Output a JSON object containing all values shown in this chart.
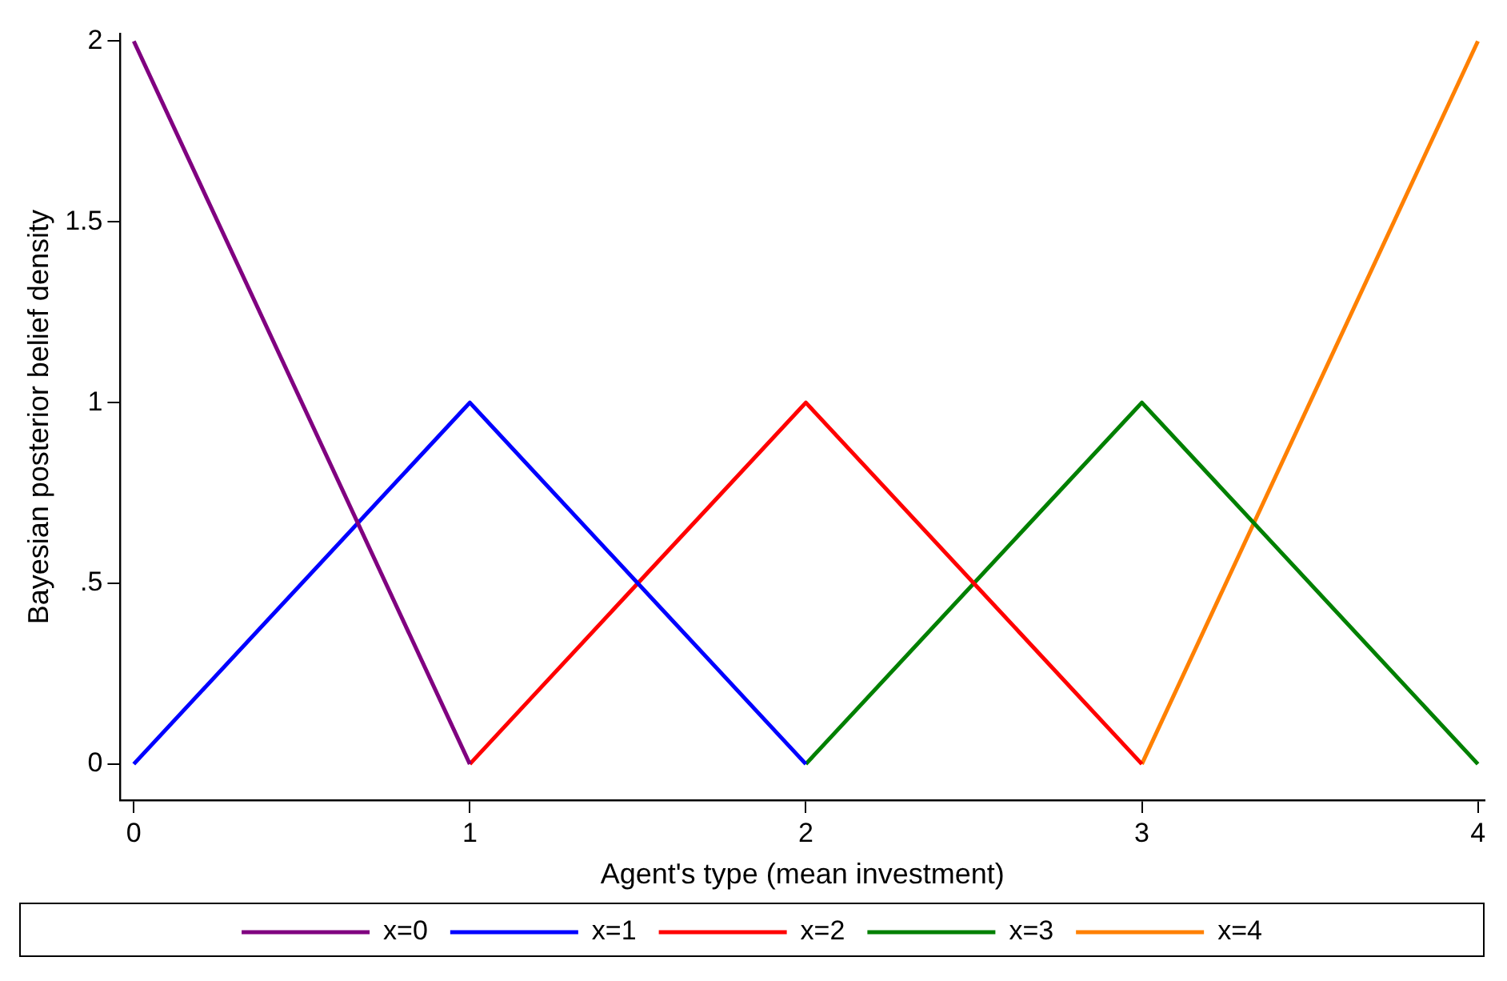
{
  "chart_data": {
    "type": "line",
    "xlabel": "Agent's type (mean investment)",
    "ylabel": "Bayesian posterior belief density",
    "series": [
      {
        "name": "x=0",
        "color": "#800080",
        "x": [
          0,
          1
        ],
        "values": [
          2,
          0
        ]
      },
      {
        "name": "x=1",
        "color": "#0000ff",
        "x": [
          0,
          1,
          2
        ],
        "values": [
          0,
          1,
          0
        ]
      },
      {
        "name": "x=2",
        "color": "#ff0000",
        "x": [
          1,
          2,
          3
        ],
        "values": [
          0,
          1,
          0
        ]
      },
      {
        "name": "x=3",
        "color": "#008000",
        "x": [
          2,
          3,
          4
        ],
        "values": [
          0,
          1,
          0
        ]
      },
      {
        "name": "x=4",
        "color": "#ff8000",
        "x": [
          3,
          4
        ],
        "values": [
          0,
          2
        ]
      }
    ],
    "xlim": [
      -0.04,
      4.02
    ],
    "xticks": [
      0,
      1,
      2,
      3,
      4
    ],
    "ylim": [
      -0.1,
      2.02
    ],
    "yticks": [
      0,
      {
        "value": 0.5,
        "label": ".5"
      },
      1,
      1.5,
      2
    ],
    "grid": false,
    "legend": "bottom",
    "marker": "none",
    "line_style": "solid"
  }
}
